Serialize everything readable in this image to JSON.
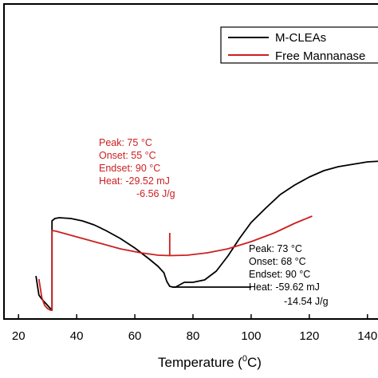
{
  "chart_data": {
    "type": "line",
    "xlabel": "Temperature (",
    "xlabel_unit_sup": "0",
    "xlabel_unit": "C)",
    "xlim": [
      15,
      145
    ],
    "xticks": [
      "20",
      "40",
      "60",
      "80",
      "100",
      "120",
      "140"
    ],
    "legend_position": "top-right",
    "grid": false,
    "colors": {
      "m_cleas": "#000000",
      "free_mannanase": "#cc1f1f"
    },
    "series": [
      {
        "name": "M-CLEAs",
        "color": "#000000",
        "points": [
          [
            26,
            54
          ],
          [
            27,
            30
          ],
          [
            28,
            25
          ],
          [
            29,
            21
          ],
          [
            30,
            17
          ],
          [
            31,
            13
          ],
          [
            31.5,
            11
          ],
          [
            31.5,
            123
          ],
          [
            32.5,
            126
          ],
          [
            34,
            127
          ],
          [
            38,
            126
          ],
          [
            42,
            123
          ],
          [
            46,
            118
          ],
          [
            50,
            111
          ],
          [
            55,
            101
          ],
          [
            60,
            89
          ],
          [
            65,
            75
          ],
          [
            68,
            66
          ],
          [
            70,
            58
          ],
          [
            71,
            47
          ],
          [
            72,
            41
          ],
          [
            73,
            40
          ],
          [
            74,
            40
          ],
          [
            75,
            42
          ],
          [
            77,
            46
          ],
          [
            80,
            46
          ],
          [
            84,
            49
          ],
          [
            88,
            60
          ],
          [
            92,
            79
          ],
          [
            96,
            101
          ],
          [
            100,
            121
          ],
          [
            105,
            139
          ],
          [
            110,
            156
          ],
          [
            115,
            168
          ],
          [
            120,
            178
          ],
          [
            125,
            186
          ],
          [
            130,
            191
          ],
          [
            135,
            194
          ],
          [
            140,
            197
          ],
          [
            145,
            198
          ]
        ]
      },
      {
        "name": "Free Mannanase",
        "color": "#cc1f1f",
        "points": [
          [
            27,
            50
          ],
          [
            28,
            27
          ],
          [
            29,
            17
          ],
          [
            30,
            13
          ],
          [
            31,
            11
          ],
          [
            31.5,
            11
          ],
          [
            31.5,
            111
          ],
          [
            33,
            110
          ],
          [
            37,
            106
          ],
          [
            42,
            101
          ],
          [
            48,
            95
          ],
          [
            55,
            88
          ],
          [
            62,
            83
          ],
          [
            68,
            80
          ],
          [
            72,
            79.5
          ],
          [
            78,
            80
          ],
          [
            85,
            83
          ],
          [
            92,
            88
          ],
          [
            100,
            97
          ],
          [
            108,
            108
          ],
          [
            115,
            120
          ],
          [
            121,
            129
          ]
        ]
      }
    ],
    "baselines": [
      {
        "series": "M-CLEAs",
        "x": [
          73,
          100
        ],
        "y": 40
      }
    ],
    "markers": [
      {
        "series": "Free Mannanase",
        "x": 72,
        "y_from": 79.5,
        "y_to": 108
      }
    ],
    "annotations": [
      {
        "series": "Free Mannanase",
        "color": "#cc1f1f",
        "lines": [
          "Peak: 75 °C",
          "Onset: 55 °C",
          "Endset: 90 °C",
          "Heat: -29.52 mJ",
          "-6.56 J/g"
        ]
      },
      {
        "series": "M-CLEAs",
        "color": "#000000",
        "lines": [
          "Peak: 73 °C",
          "Onset: 68 °C",
          "Endset: 90 °C",
          "Heat: -59.62 mJ",
          "-14.54 J/g"
        ]
      }
    ]
  }
}
